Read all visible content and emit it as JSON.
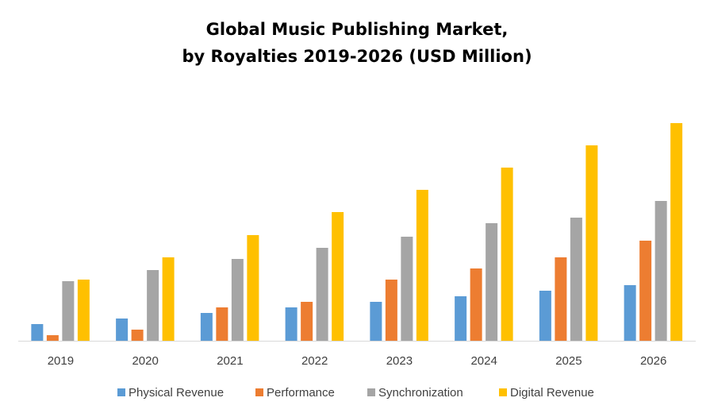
{
  "chart_data": {
    "type": "bar",
    "title_lines": [
      "Global Music Publishing Market,",
      "by Royalties 2019-2026 (USD Million)"
    ],
    "xlabel": "",
    "ylabel": "",
    "categories": [
      "2019",
      "2020",
      "2021",
      "2022",
      "2023",
      "2024",
      "2025",
      "2026"
    ],
    "ylim": [
      0,
      280
    ],
    "grid": false,
    "legend_position": "bottom",
    "series": [
      {
        "name": "Physical Revenue",
        "color": "#5B9BD5",
        "values": [
          21,
          28,
          35,
          42,
          49,
          56,
          63,
          70
        ]
      },
      {
        "name": "Performance",
        "color": "#ED7D31",
        "values": [
          7,
          14,
          42,
          49,
          77,
          91,
          105,
          126
        ]
      },
      {
        "name": "Synchronization",
        "color": "#A5A5A5",
        "values": [
          75,
          89,
          103,
          117,
          131,
          148,
          155,
          176
        ]
      },
      {
        "name": "Digital Revenue",
        "color": "#FFC000",
        "values": [
          77,
          105,
          133,
          162,
          190,
          218,
          246,
          274
        ]
      }
    ]
  }
}
